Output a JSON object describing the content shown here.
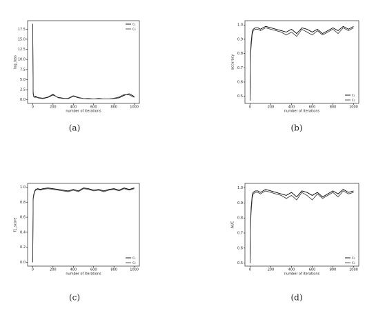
{
  "chart_data": [
    {
      "type": "line",
      "caption": "(a)",
      "xlabel": "number of iterations",
      "ylabel": "log_loss",
      "legend": "upper right",
      "x": [
        0,
        5,
        10,
        20,
        30,
        50,
        75,
        100,
        150,
        200,
        250,
        300,
        350,
        400,
        450,
        500,
        550,
        600,
        650,
        700,
        750,
        800,
        850,
        900,
        950,
        1000
      ],
      "series": [
        {
          "name": "c₁",
          "color": "#000000",
          "values": [
            18.8,
            1.5,
            0.8,
            0.6,
            0.9,
            0.5,
            0.4,
            0.3,
            0.6,
            1.2,
            0.6,
            0.4,
            0.3,
            0.9,
            0.5,
            0.3,
            0.2,
            0.2,
            0.3,
            0.2,
            0.2,
            0.3,
            0.5,
            1.1,
            1.5,
            0.8
          ]
        },
        {
          "name": "c₂",
          "color": "#444444",
          "values": [
            18.8,
            2.0,
            1.0,
            0.7,
            0.6,
            0.6,
            0.5,
            0.4,
            0.7,
            1.4,
            0.5,
            0.3,
            0.4,
            1.0,
            0.6,
            0.3,
            0.3,
            0.2,
            0.2,
            0.2,
            0.2,
            0.4,
            0.7,
            1.3,
            1.2,
            0.6
          ]
        }
      ],
      "xlim": [
        -50,
        1050
      ],
      "xticks": [
        0,
        200,
        400,
        600,
        800,
        1000
      ],
      "ylim": [
        -0.9,
        19.6
      ],
      "yticks": [
        {
          "value": 0,
          "label": "0.0"
        },
        2.5,
        {
          "value": 5,
          "label": "5.0"
        },
        7.5,
        {
          "value": 10,
          "label": "10.0"
        },
        12.5,
        {
          "value": 15,
          "label": "15.0"
        },
        17.5
      ]
    },
    {
      "type": "line",
      "caption": "(b)",
      "xlabel": "number of iterations",
      "ylabel": "accuracy",
      "legend": "lower right",
      "x": [
        0,
        5,
        10,
        20,
        30,
        50,
        75,
        100,
        150,
        200,
        250,
        300,
        350,
        400,
        450,
        500,
        550,
        600,
        650,
        700,
        750,
        800,
        850,
        900,
        950,
        1000
      ],
      "series": [
        {
          "name": "c₁",
          "color": "#000000",
          "values": [
            0.47,
            0.82,
            0.88,
            0.95,
            0.97,
            0.98,
            0.98,
            0.97,
            0.99,
            0.98,
            0.97,
            0.96,
            0.95,
            0.97,
            0.94,
            0.98,
            0.97,
            0.95,
            0.97,
            0.94,
            0.96,
            0.98,
            0.96,
            0.99,
            0.97,
            0.99
          ]
        },
        {
          "name": "c₂",
          "color": "#444444",
          "values": [
            0.47,
            0.8,
            0.85,
            0.93,
            0.96,
            0.97,
            0.97,
            0.96,
            0.98,
            0.97,
            0.96,
            0.95,
            0.93,
            0.95,
            0.92,
            0.97,
            0.95,
            0.93,
            0.96,
            0.93,
            0.95,
            0.97,
            0.94,
            0.98,
            0.96,
            0.98
          ]
        }
      ],
      "xlim": [
        -50,
        1050
      ],
      "xticks": [
        0,
        200,
        400,
        600,
        800,
        1000
      ],
      "ylim": [
        0.45,
        1.03
      ],
      "yticks": [
        0.5,
        0.6,
        0.7,
        0.8,
        0.9,
        {
          "value": 1,
          "label": "1.0"
        }
      ]
    },
    {
      "type": "line",
      "caption": "(c)",
      "xlabel": "number of iterations",
      "ylabel": "f1_score",
      "legend": "lower right",
      "x": [
        0,
        5,
        10,
        20,
        30,
        50,
        75,
        100,
        150,
        200,
        250,
        300,
        350,
        400,
        450,
        500,
        550,
        600,
        650,
        700,
        750,
        800,
        850,
        900,
        950,
        1000
      ],
      "series": [
        {
          "name": "c₁",
          "color": "#000000",
          "values": [
            0.0,
            0.85,
            0.9,
            0.95,
            0.97,
            0.98,
            0.97,
            0.98,
            0.99,
            0.98,
            0.97,
            0.96,
            0.95,
            0.97,
            0.95,
            0.99,
            0.98,
            0.96,
            0.97,
            0.95,
            0.97,
            0.98,
            0.96,
            0.99,
            0.97,
            0.99
          ]
        },
        {
          "name": "c₂",
          "color": "#444444",
          "values": [
            0.0,
            0.84,
            0.88,
            0.94,
            0.96,
            0.97,
            0.96,
            0.97,
            0.98,
            0.97,
            0.96,
            0.95,
            0.94,
            0.96,
            0.94,
            0.98,
            0.97,
            0.95,
            0.96,
            0.94,
            0.96,
            0.97,
            0.95,
            0.98,
            0.96,
            0.98
          ]
        }
      ],
      "xlim": [
        -50,
        1050
      ],
      "xticks": [
        0,
        200,
        400,
        600,
        800,
        1000
      ],
      "ylim": [
        -0.05,
        1.05
      ],
      "yticks": [
        {
          "value": 0,
          "label": "0.0"
        },
        0.2,
        0.4,
        0.6,
        0.8,
        {
          "value": 1,
          "label": "1.0"
        }
      ]
    },
    {
      "type": "line",
      "caption": "(d)",
      "xlabel": "number of iterations",
      "ylabel": "AUC",
      "legend": "lower right",
      "x": [
        0,
        5,
        10,
        20,
        30,
        50,
        75,
        100,
        150,
        200,
        250,
        300,
        350,
        400,
        450,
        500,
        550,
        600,
        650,
        700,
        750,
        800,
        850,
        900,
        950,
        1000
      ],
      "series": [
        {
          "name": "c₁",
          "color": "#000000",
          "values": [
            0.5,
            0.8,
            0.87,
            0.95,
            0.97,
            0.98,
            0.98,
            0.97,
            0.99,
            0.98,
            0.97,
            0.96,
            0.95,
            0.97,
            0.94,
            0.98,
            0.97,
            0.95,
            0.97,
            0.94,
            0.96,
            0.98,
            0.96,
            0.99,
            0.97,
            0.98
          ]
        },
        {
          "name": "c₂",
          "color": "#444444",
          "values": [
            0.5,
            0.78,
            0.84,
            0.93,
            0.96,
            0.97,
            0.97,
            0.96,
            0.98,
            0.97,
            0.96,
            0.95,
            0.93,
            0.95,
            0.92,
            0.97,
            0.95,
            0.92,
            0.96,
            0.93,
            0.95,
            0.97,
            0.94,
            0.98,
            0.96,
            0.97
          ]
        }
      ],
      "xlim": [
        -50,
        1050
      ],
      "xticks": [
        0,
        200,
        400,
        600,
        800,
        1000
      ],
      "ylim": [
        0.48,
        1.03
      ],
      "yticks": [
        0.5,
        0.6,
        0.7,
        0.8,
        0.9,
        {
          "value": 1,
          "label": "1.0"
        }
      ]
    }
  ]
}
